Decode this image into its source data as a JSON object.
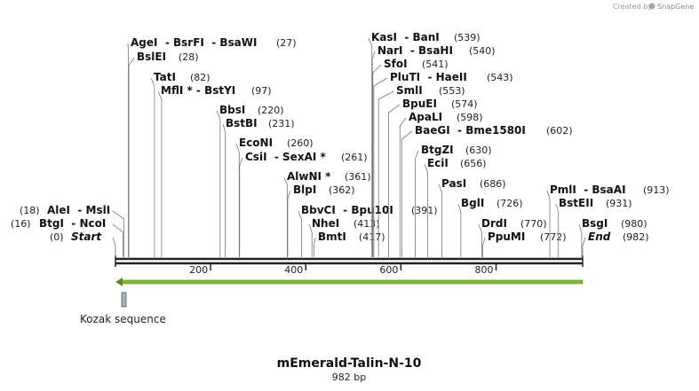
{
  "header": {
    "credit": "Created by",
    "brand": "SnapGene"
  },
  "sites": [
    {
      "name": "AleI  - MslI",
      "position": "(18)"
    },
    {
      "name": "BtgI  - NcoI",
      "position": "(16)"
    },
    {
      "name": "Start",
      "position": "(0)"
    },
    {
      "name": "AgeI  - BsrFI  - BsaWI",
      "position": "(27)"
    },
    {
      "name": "BslEI",
      "position": "(28)"
    },
    {
      "name": "TatI",
      "position": "(82)"
    },
    {
      "name": "MflI * - BstYI",
      "position": "(97)"
    },
    {
      "name": "BbsI",
      "position": "(220)"
    },
    {
      "name": "BstBI",
      "position": "(231)"
    },
    {
      "name": "EcoNI",
      "position": "(260)"
    },
    {
      "name": "CsiI  - SexAI *",
      "position": "(261)"
    },
    {
      "name": "AlwNI *",
      "position": "(361)"
    },
    {
      "name": "BlpI",
      "position": "(362)"
    },
    {
      "name": "BbvCI  - Bpu10I",
      "position": "(391)"
    },
    {
      "name": "NheI",
      "position": "(413)"
    },
    {
      "name": "BmtI",
      "position": "(417)"
    },
    {
      "name": "KasI  - BanI",
      "position": "(539)"
    },
    {
      "name": "NarI  - BsaHI",
      "position": "(540)"
    },
    {
      "name": "SfoI",
      "position": "(541)"
    },
    {
      "name": "PluTI  - HaeII",
      "position": "(543)"
    },
    {
      "name": "SmlI",
      "position": "(553)"
    },
    {
      "name": "BpuEI",
      "position": "(574)"
    },
    {
      "name": "ApaLI",
      "position": "(598)"
    },
    {
      "name": "BaeGI  - Bme1580I",
      "position": "(602)"
    },
    {
      "name": "BtgZI",
      "position": "(630)"
    },
    {
      "name": "EciI",
      "position": "(656)"
    },
    {
      "name": "PasI",
      "position": "(686)"
    },
    {
      "name": "BglI",
      "position": "(726)"
    },
    {
      "name": "DrdI",
      "position": "(770)"
    },
    {
      "name": "PpuMI",
      "position": "(772)"
    },
    {
      "name": "PmlI  - BsaAI",
      "position": "(913)"
    },
    {
      "name": "BstEII",
      "position": "(931)"
    },
    {
      "name": "BsgI",
      "position": "(980)"
    },
    {
      "name": "End",
      "position": "(982)"
    }
  ],
  "axis": {
    "length": 982,
    "ticks": [
      200,
      400,
      600,
      800
    ]
  },
  "features": [
    {
      "label": "Kozak sequence"
    }
  ],
  "title": "mEmerald-Talin-N-10",
  "subtitle": "982 bp"
}
